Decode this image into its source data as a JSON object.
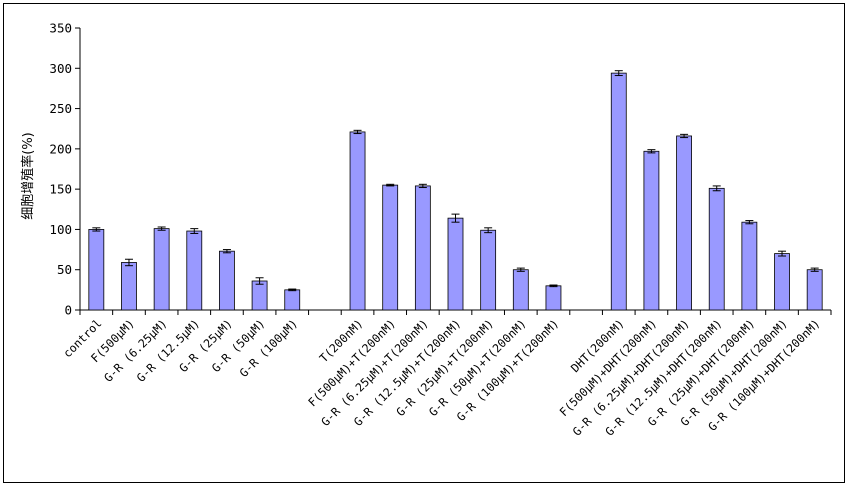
{
  "chart_data": {
    "type": "bar",
    "title": "",
    "xlabel": "",
    "ylabel": "细胞增殖率(%)",
    "ylim": [
      0,
      350
    ],
    "yticks": [
      0,
      50,
      100,
      150,
      200,
      250,
      300,
      350
    ],
    "grid": false,
    "legend": "none",
    "bar_color": "#9999ff",
    "categories": [
      "control",
      "F(500μM)",
      "G-R (6.25μM)",
      "G-R (12.5μM)",
      "G-R (25μM)",
      "G-R (50μM)",
      "G-R (100μM)",
      "",
      "T(200nM)",
      "F(500μM)+T(200nM)",
      "G-R (6.25μM)+T(200nM)",
      "G-R (12.5μM)+T(200nM)",
      "G-R (25μM)+T(200nM)",
      "G-R (50μM)+T(200nM)",
      "G-R (100μM)+T(200nM)",
      "",
      "DHT(200nM)",
      "F(500μM)+DHT(200nM)",
      "G-R (6.25μM)+DHT(200nM)",
      "G-R (12.5μM)+DHT(200nM)",
      "G-R (25μM)+DHT(200nM)",
      "G-R (50μM)+DHT(200nM)",
      "G-R (100μM)+DHT(200nM)"
    ],
    "values": [
      100,
      59,
      101,
      98,
      73,
      36,
      25,
      null,
      221,
      155,
      154,
      114,
      99,
      50,
      30,
      null,
      294,
      197,
      216,
      151,
      109,
      70,
      50
    ],
    "errors": [
      2,
      4,
      2,
      3,
      2,
      4,
      1,
      null,
      2,
      1,
      2,
      5,
      3,
      2,
      1,
      null,
      3,
      2,
      2,
      3,
      2,
      3,
      2
    ]
  }
}
